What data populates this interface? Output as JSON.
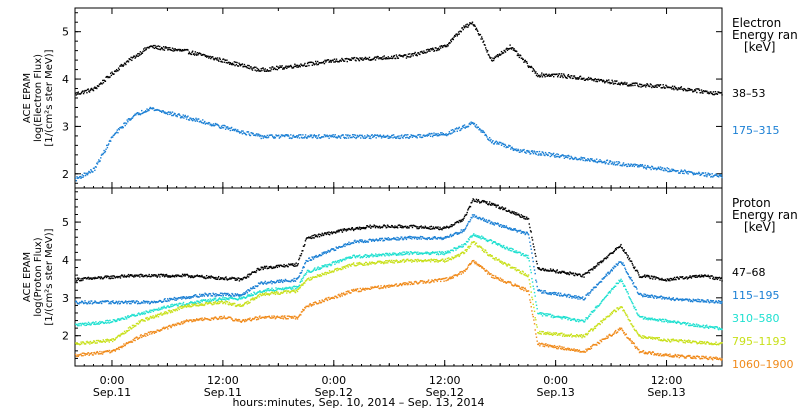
{
  "chart_data": [
    {
      "type": "scatter",
      "ylabel": [
        "ACE EPAM",
        "log(Electron Flux)",
        "[1/(cm²s ster MeV)]"
      ],
      "ylim": [
        1.7,
        5.5
      ],
      "yticks": [
        2,
        3,
        4,
        5
      ],
      "xlim": [
        "2014-09-10 20:00",
        "2014-09-13 18:00"
      ],
      "legend_placement": "right",
      "legend_title": [
        "Electron",
        "Energy ran",
        "[keV]"
      ],
      "series": [
        {
          "name": "38–53",
          "color": "#000000",
          "x": [
            "2014-09-10 20:00",
            "2014-09-10 22:00",
            "2014-09-11 01:00",
            "2014-09-11 04:00",
            "2014-09-11 08:00",
            "2014-09-11 12:00",
            "2014-09-11 16:00",
            "2014-09-11 20:00",
            "2014-09-12 00:00",
            "2014-09-12 04:00",
            "2014-09-12 08:00",
            "2014-09-12 12:00",
            "2014-09-12 14:00",
            "2014-09-12 15:00",
            "2014-09-12 16:00",
            "2014-09-12 17:00",
            "2014-09-12 19:00",
            "2014-09-12 21:00",
            "2014-09-12 22:00",
            "2014-09-13 00:00",
            "2014-09-13 04:00",
            "2014-09-13 08:00",
            "2014-09-13 12:00",
            "2014-09-13 16:00",
            "2014-09-13 18:00"
          ],
          "y": [
            3.7,
            3.8,
            4.3,
            4.7,
            4.6,
            4.4,
            4.2,
            4.3,
            4.4,
            4.45,
            4.5,
            4.7,
            5.1,
            5.2,
            4.85,
            4.4,
            4.7,
            4.3,
            4.1,
            4.1,
            4.0,
            3.9,
            3.85,
            3.75,
            3.7
          ]
        },
        {
          "name": "175–315",
          "color": "#1a7fd4",
          "x": [
            "2014-09-10 20:00",
            "2014-09-10 22:00",
            "2014-09-11 00:00",
            "2014-09-11 02:00",
            "2014-09-11 04:00",
            "2014-09-11 08:00",
            "2014-09-11 12:00",
            "2014-09-11 16:00",
            "2014-09-11 20:00",
            "2014-09-12 00:00",
            "2014-09-12 04:00",
            "2014-09-12 08:00",
            "2014-09-12 12:00",
            "2014-09-12 14:00",
            "2014-09-12 15:00",
            "2014-09-12 17:00",
            "2014-09-12 20:00",
            "2014-09-13 00:00",
            "2014-09-13 04:00",
            "2014-09-13 08:00",
            "2014-09-13 12:00",
            "2014-09-13 16:00",
            "2014-09-13 18:00"
          ],
          "y": [
            1.9,
            2.1,
            2.8,
            3.2,
            3.4,
            3.2,
            3.0,
            2.8,
            2.8,
            2.8,
            2.8,
            2.8,
            2.85,
            3.0,
            3.1,
            2.7,
            2.5,
            2.4,
            2.3,
            2.2,
            2.1,
            2.0,
            1.95
          ]
        }
      ]
    },
    {
      "type": "scatter",
      "ylabel": [
        "ACE EPAM",
        "log(Proton Flux)",
        "[1/(cm²s ster MeV)]"
      ],
      "ylim": [
        1.2,
        5.9
      ],
      "yticks": [
        2,
        3,
        4,
        5
      ],
      "xlim": [
        "2014-09-10 20:00",
        "2014-09-13 18:00"
      ],
      "xticks": [
        {
          "time": "0:00",
          "date": "Sep.11"
        },
        {
          "time": "12:00",
          "date": "Sep.11"
        },
        {
          "time": "0:00",
          "date": "Sep.12"
        },
        {
          "time": "12:00",
          "date": "Sep.12"
        },
        {
          "time": "0:00",
          "date": "Sep.13"
        },
        {
          "time": "12:00",
          "date": "Sep.13"
        }
      ],
      "xlabel": "hours:minutes, Sep. 10, 2014 – Sep. 13, 2014",
      "legend_placement": "right",
      "legend_title": [
        "Proton",
        "Energy ran",
        "[keV]"
      ],
      "series": [
        {
          "name": "47–68",
          "color": "#000000",
          "x": [
            "2014-09-10 20:00",
            "2014-09-11 02:00",
            "2014-09-11 08:00",
            "2014-09-11 14:00",
            "2014-09-11 16:00",
            "2014-09-11 20:00",
            "2014-09-11 21:00",
            "2014-09-12 01:00",
            "2014-09-12 04:00",
            "2014-09-12 08:00",
            "2014-09-12 12:00",
            "2014-09-12 14:00",
            "2014-09-12 15:00",
            "2014-09-12 17:00",
            "2014-09-12 19:00",
            "2014-09-12 21:00",
            "2014-09-12 22:00",
            "2014-09-13 03:00",
            "2014-09-13 07:00",
            "2014-09-13 09:00",
            "2014-09-13 12:00",
            "2014-09-13 16:00",
            "2014-09-13 18:00"
          ],
          "y": [
            3.5,
            3.6,
            3.6,
            3.5,
            3.8,
            3.9,
            4.6,
            4.8,
            4.9,
            4.9,
            4.85,
            5.1,
            5.6,
            5.5,
            5.3,
            5.1,
            3.8,
            3.6,
            4.4,
            3.6,
            3.5,
            3.6,
            3.5
          ]
        },
        {
          "name": "115–195",
          "color": "#1a7fd4",
          "x": [
            "2014-09-10 20:00",
            "2014-09-11 04:00",
            "2014-09-11 10:00",
            "2014-09-11 14:00",
            "2014-09-11 16:00",
            "2014-09-11 20:00",
            "2014-09-11 21:00",
            "2014-09-12 02:00",
            "2014-09-12 08:00",
            "2014-09-12 12:00",
            "2014-09-12 14:00",
            "2014-09-12 15:00",
            "2014-09-12 17:00",
            "2014-09-12 21:00",
            "2014-09-12 22:00",
            "2014-09-13 03:00",
            "2014-09-13 07:00",
            "2014-09-13 09:00",
            "2014-09-13 12:00",
            "2014-09-13 18:00"
          ],
          "y": [
            2.9,
            2.9,
            3.1,
            3.1,
            3.4,
            3.5,
            4.0,
            4.5,
            4.6,
            4.6,
            4.8,
            5.2,
            5.0,
            4.7,
            3.2,
            3.0,
            4.0,
            3.1,
            3.0,
            2.9
          ]
        },
        {
          "name": "310–580",
          "color": "#1fe0d0",
          "x": [
            "2014-09-10 20:00",
            "2014-09-11 00:00",
            "2014-09-11 06:00",
            "2014-09-11 12:00",
            "2014-09-11 14:00",
            "2014-09-11 16:00",
            "2014-09-11 20:00",
            "2014-09-11 21:00",
            "2014-09-12 02:00",
            "2014-09-12 08:00",
            "2014-09-12 12:00",
            "2014-09-12 14:00",
            "2014-09-12 15:00",
            "2014-09-12 17:00",
            "2014-09-12 21:00",
            "2014-09-12 22:00",
            "2014-09-13 03:00",
            "2014-09-13 07:00",
            "2014-09-13 09:00",
            "2014-09-13 12:00",
            "2014-09-13 18:00"
          ],
          "y": [
            2.3,
            2.4,
            2.8,
            3.0,
            3.0,
            3.2,
            3.3,
            3.7,
            4.1,
            4.2,
            4.2,
            4.4,
            4.7,
            4.5,
            4.1,
            2.6,
            2.4,
            3.5,
            2.5,
            2.4,
            2.2
          ]
        },
        {
          "name": "795–1193",
          "color": "#c8e01a",
          "x": [
            "2014-09-10 20:00",
            "2014-09-11 00:00",
            "2014-09-11 03:00",
            "2014-09-11 08:00",
            "2014-09-11 12:00",
            "2014-09-11 14:00",
            "2014-09-11 16:00",
            "2014-09-11 20:00",
            "2014-09-11 21:00",
            "2014-09-12 02:00",
            "2014-09-12 08:00",
            "2014-09-12 12:00",
            "2014-09-12 14:00",
            "2014-09-12 15:00",
            "2014-09-12 17:00",
            "2014-09-12 21:00",
            "2014-09-12 22:00",
            "2014-09-13 03:00",
            "2014-09-13 07:00",
            "2014-09-13 09:00",
            "2014-09-13 12:00",
            "2014-09-13 18:00"
          ],
          "y": [
            1.8,
            1.9,
            2.4,
            2.8,
            2.9,
            2.8,
            3.1,
            3.2,
            3.5,
            3.9,
            4.0,
            4.0,
            4.2,
            4.5,
            4.1,
            3.6,
            2.1,
            2.0,
            2.8,
            2.0,
            1.9,
            1.8
          ]
        },
        {
          "name": "1060–1900",
          "color": "#f08a1a",
          "x": [
            "2014-09-10 20:00",
            "2014-09-11 00:00",
            "2014-09-11 03:00",
            "2014-09-11 08:00",
            "2014-09-11 12:00",
            "2014-09-11 14:00",
            "2014-09-11 16:00",
            "2014-09-11 20:00",
            "2014-09-11 21:00",
            "2014-09-12 02:00",
            "2014-09-12 08:00",
            "2014-09-12 12:00",
            "2014-09-12 14:00",
            "2014-09-12 15:00",
            "2014-09-12 17:00",
            "2014-09-12 21:00",
            "2014-09-12 22:00",
            "2014-09-13 03:00",
            "2014-09-13 07:00",
            "2014-09-13 09:00",
            "2014-09-13 12:00",
            "2014-09-13 18:00"
          ],
          "y": [
            1.5,
            1.6,
            2.0,
            2.4,
            2.5,
            2.4,
            2.5,
            2.5,
            2.8,
            3.2,
            3.4,
            3.5,
            3.7,
            4.0,
            3.6,
            3.2,
            1.8,
            1.6,
            2.2,
            1.6,
            1.5,
            1.4
          ]
        }
      ]
    }
  ]
}
